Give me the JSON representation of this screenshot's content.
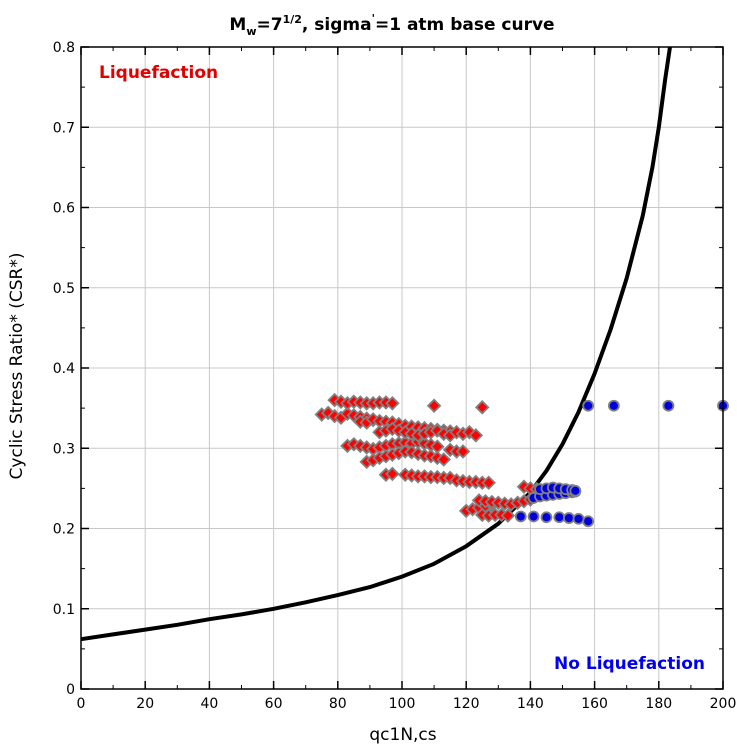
{
  "chart_data": {
    "type": "scatter",
    "title_main": "M",
    "title_sub": "w",
    "title_eq": "=7",
    "title_sup": "1/2",
    "title_rest": ", sigma",
    "title_prime": "'",
    "title_end": "=1 atm base curve",
    "xlabel": "qc1N,cs",
    "ylabel": "Cyclic Stress Ratio* (CSR*)",
    "xlim": [
      0,
      200
    ],
    "ylim": [
      0,
      0.8
    ],
    "xticks": [
      0,
      20,
      40,
      60,
      80,
      100,
      120,
      140,
      160,
      180,
      200
    ],
    "yticks": [
      0,
      0.1,
      0.2,
      0.3,
      0.4,
      0.5,
      0.6,
      0.7,
      0.8
    ],
    "xtick_labels": [
      "0",
      "20",
      "40",
      "60",
      "80",
      "100",
      "120",
      "140",
      "160",
      "180",
      "200"
    ],
    "ytick_labels": [
      "0",
      "0.1",
      "0.2",
      "0.3",
      "0.4",
      "0.5",
      "0.6",
      "0.7",
      "0.8"
    ],
    "grid": true,
    "annotations": {
      "liquefaction": "Liquefaction",
      "no_liquefaction": "No Liquefaction"
    },
    "colors": {
      "curve": "#000000",
      "liquefaction": "#ff0000",
      "liquefaction_text": "#e00000",
      "no_liquefaction": "#0000dd",
      "no_liquefaction_text": "#0000ee",
      "marker_edge": "#808080",
      "grid": "#c8c8c8"
    },
    "base_curve": {
      "name": "base curve",
      "points": [
        [
          0,
          0.062
        ],
        [
          10,
          0.068
        ],
        [
          20,
          0.074
        ],
        [
          30,
          0.08
        ],
        [
          40,
          0.087
        ],
        [
          50,
          0.093
        ],
        [
          60,
          0.1
        ],
        [
          70,
          0.108
        ],
        [
          80,
          0.117
        ],
        [
          90,
          0.127
        ],
        [
          100,
          0.14
        ],
        [
          110,
          0.156
        ],
        [
          120,
          0.178
        ],
        [
          130,
          0.206
        ],
        [
          140,
          0.245
        ],
        [
          145,
          0.272
        ],
        [
          150,
          0.305
        ],
        [
          155,
          0.345
        ],
        [
          160,
          0.393
        ],
        [
          165,
          0.448
        ],
        [
          170,
          0.512
        ],
        [
          175,
          0.59
        ],
        [
          178,
          0.65
        ],
        [
          180,
          0.7
        ],
        [
          182,
          0.76
        ],
        [
          183.5,
          0.8
        ]
      ]
    },
    "series": [
      {
        "name": "Liquefaction",
        "marker": "diamond",
        "points": [
          [
            75,
            0.342
          ],
          [
            77,
            0.344
          ],
          [
            79,
            0.34
          ],
          [
            81,
            0.338
          ],
          [
            83,
            0.343
          ],
          [
            85,
            0.341
          ],
          [
            87,
            0.339
          ],
          [
            89,
            0.337
          ],
          [
            91,
            0.335
          ],
          [
            79,
            0.36
          ],
          [
            81,
            0.358
          ],
          [
            83,
            0.356
          ],
          [
            85,
            0.358
          ],
          [
            87,
            0.357
          ],
          [
            89,
            0.356
          ],
          [
            91,
            0.356
          ],
          [
            93,
            0.357
          ],
          [
            95,
            0.357
          ],
          [
            97,
            0.356
          ],
          [
            87,
            0.333
          ],
          [
            89,
            0.332
          ],
          [
            91,
            0.336
          ],
          [
            93,
            0.334
          ],
          [
            95,
            0.333
          ],
          [
            97,
            0.332
          ],
          [
            99,
            0.33
          ],
          [
            101,
            0.328
          ],
          [
            103,
            0.327
          ],
          [
            105,
            0.326
          ],
          [
            107,
            0.325
          ],
          [
            109,
            0.324
          ],
          [
            111,
            0.323
          ],
          [
            113,
            0.322
          ],
          [
            115,
            0.321
          ],
          [
            83,
            0.303
          ],
          [
            85,
            0.305
          ],
          [
            87,
            0.303
          ],
          [
            89,
            0.301
          ],
          [
            91,
            0.299
          ],
          [
            93,
            0.301
          ],
          [
            95,
            0.303
          ],
          [
            97,
            0.305
          ],
          [
            99,
            0.306
          ],
          [
            101,
            0.307
          ],
          [
            103,
            0.306
          ],
          [
            105,
            0.308
          ],
          [
            107,
            0.306
          ],
          [
            109,
            0.304
          ],
          [
            111,
            0.302
          ],
          [
            93,
            0.32
          ],
          [
            95,
            0.322
          ],
          [
            97,
            0.324
          ],
          [
            99,
            0.322
          ],
          [
            101,
            0.32
          ],
          [
            103,
            0.318
          ],
          [
            105,
            0.316
          ],
          [
            107,
            0.318
          ],
          [
            109,
            0.32
          ],
          [
            111,
            0.322
          ],
          [
            113,
            0.318
          ],
          [
            115,
            0.316
          ],
          [
            117,
            0.32
          ],
          [
            119,
            0.318
          ],
          [
            121,
            0.32
          ],
          [
            123,
            0.316
          ],
          [
            89,
            0.283
          ],
          [
            91,
            0.285
          ],
          [
            93,
            0.288
          ],
          [
            95,
            0.29
          ],
          [
            97,
            0.292
          ],
          [
            99,
            0.294
          ],
          [
            101,
            0.296
          ],
          [
            103,
            0.295
          ],
          [
            105,
            0.293
          ],
          [
            107,
            0.291
          ],
          [
            109,
            0.29
          ],
          [
            111,
            0.288
          ],
          [
            113,
            0.286
          ],
          [
            115,
            0.298
          ],
          [
            117,
            0.296
          ],
          [
            119,
            0.296
          ],
          [
            95,
            0.267
          ],
          [
            97,
            0.268
          ],
          [
            101,
            0.267
          ],
          [
            103,
            0.266
          ],
          [
            105,
            0.265
          ],
          [
            107,
            0.265
          ],
          [
            109,
            0.264
          ],
          [
            111,
            0.264
          ],
          [
            113,
            0.263
          ],
          [
            115,
            0.263
          ],
          [
            117,
            0.26
          ],
          [
            119,
            0.259
          ],
          [
            121,
            0.258
          ],
          [
            123,
            0.258
          ],
          [
            125,
            0.257
          ],
          [
            127,
            0.257
          ],
          [
            110,
            0.353
          ],
          [
            125,
            0.351
          ],
          [
            120,
            0.222
          ],
          [
            122,
            0.224
          ],
          [
            124,
            0.226
          ],
          [
            126,
            0.228
          ],
          [
            128,
            0.23
          ],
          [
            124,
            0.235
          ],
          [
            126,
            0.234
          ],
          [
            128,
            0.233
          ],
          [
            130,
            0.232
          ],
          [
            132,
            0.231
          ],
          [
            134,
            0.23
          ],
          [
            136,
            0.232
          ],
          [
            138,
            0.234
          ],
          [
            125,
            0.217
          ],
          [
            127,
            0.216
          ],
          [
            129,
            0.217
          ],
          [
            131,
            0.217
          ],
          [
            133,
            0.216
          ],
          [
            138,
            0.252
          ],
          [
            140,
            0.25
          ],
          [
            142,
            0.249
          ],
          [
            140,
            0.236
          ]
        ]
      },
      {
        "name": "No Liquefaction",
        "marker": "circle",
        "points": [
          [
            158,
            0.353
          ],
          [
            166,
            0.353
          ],
          [
            183,
            0.353
          ],
          [
            200,
            0.353
          ],
          [
            137,
            0.215
          ],
          [
            141,
            0.215
          ],
          [
            145,
            0.214
          ],
          [
            149,
            0.214
          ],
          [
            152,
            0.213
          ],
          [
            155,
            0.212
          ],
          [
            158,
            0.209
          ],
          [
            141,
            0.238
          ],
          [
            143,
            0.24
          ],
          [
            145,
            0.241
          ],
          [
            147,
            0.242
          ],
          [
            149,
            0.243
          ],
          [
            151,
            0.244
          ],
          [
            153,
            0.245
          ],
          [
            154,
            0.246
          ],
          [
            143,
            0.249
          ],
          [
            145,
            0.25
          ],
          [
            147,
            0.251
          ],
          [
            149,
            0.25
          ],
          [
            151,
            0.249
          ],
          [
            153,
            0.248
          ],
          [
            154,
            0.247
          ]
        ]
      }
    ]
  }
}
